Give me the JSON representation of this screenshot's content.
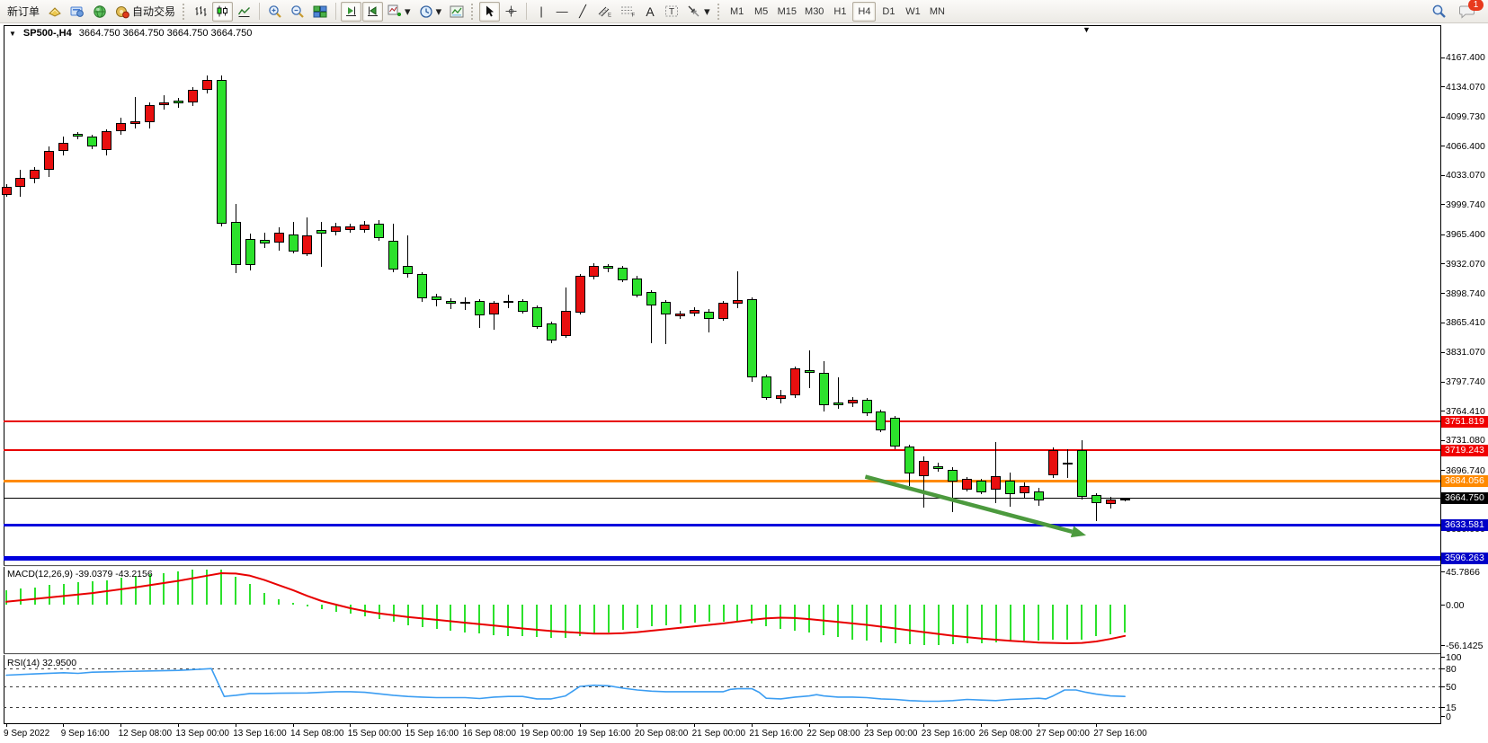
{
  "toolbar": {
    "new_order": "新订单",
    "auto_trading": "自动交易",
    "timeframes": [
      "M1",
      "M5",
      "M15",
      "M30",
      "H1",
      "H4",
      "D1",
      "W1",
      "MN"
    ],
    "active_timeframe": "H4",
    "notification_count": "1",
    "icons": [
      "new-order",
      "metaeditor",
      "marketwatch-globe",
      "auto-trading",
      "bar-chart",
      "candlestick-chart",
      "line-chart",
      "zoom-in",
      "zoom-out",
      "tile-windows",
      "auto-scroll",
      "chart-shift",
      "add-indicator",
      "periods-clock",
      "templates",
      "cursor",
      "crosshair",
      "vertical-line",
      "horizontal-line",
      "trendline",
      "equidistant-channel",
      "fibonacci",
      "text",
      "text-label",
      "shapes",
      "search",
      "notifications"
    ]
  },
  "chart_header": {
    "symbol_period": "SP500-,H4",
    "ohlc": "3664.750 3664.750 3664.750 3664.750"
  },
  "price_axis": {
    "ticks": [
      "4167.400",
      "4134.070",
      "4099.730",
      "4066.400",
      "4033.070",
      "3999.740",
      "3965.400",
      "3932.070",
      "3898.740",
      "3865.410",
      "3831.070",
      "3797.740",
      "3764.410",
      "3731.080",
      "3696.740",
      "3630.000"
    ]
  },
  "time_axis": {
    "labels": [
      "9 Sep 2022",
      "9 Sep 16:00",
      "12 Sep 08:00",
      "13 Sep 00:00",
      "13 Sep 16:00",
      "14 Sep 08:00",
      "15 Sep 00:00",
      "15 Sep 16:00",
      "16 Sep 08:00",
      "19 Sep 00:00",
      "19 Sep 16:00",
      "20 Sep 08:00",
      "21 Sep 00:00",
      "21 Sep 16:00",
      "22 Sep 08:00",
      "23 Sep 00:00",
      "23 Sep 16:00",
      "26 Sep 08:00",
      "27 Sep 00:00",
      "27 Sep 16:00"
    ],
    "bars_per_label": 4
  },
  "chart_data": {
    "type": "candlestick",
    "symbol": "SP500-",
    "timeframe": "H4",
    "colors": {
      "up": "#e80f0f",
      "down": "#2ce12c",
      "wick": "#000000",
      "background": "#ffffff"
    },
    "candles": [
      [
        4023,
        4020,
        4010,
        4008,
        "r"
      ],
      [
        4039,
        4030,
        4020,
        4008,
        "r"
      ],
      [
        4042,
        4039,
        4029,
        4024,
        "r"
      ],
      [
        4066,
        4061,
        4039,
        4031,
        "r"
      ],
      [
        4077,
        4070,
        4061,
        4056,
        "r"
      ],
      [
        4082,
        4080,
        4077,
        4074,
        "g"
      ],
      [
        4079,
        4077,
        4066,
        4063,
        "g"
      ],
      [
        4085,
        4083,
        4062,
        4056,
        "r"
      ],
      [
        4099,
        4093,
        4083,
        4079,
        "r"
      ],
      [
        4122,
        4095,
        4092,
        4086,
        "r"
      ],
      [
        4116,
        4113,
        4094,
        4086,
        "r"
      ],
      [
        4124,
        4116,
        4113,
        4108,
        "r"
      ],
      [
        4121,
        4118,
        4115,
        4110,
        "g"
      ],
      [
        4134,
        4130,
        4116,
        4112,
        "r"
      ],
      [
        4147,
        4142,
        4130,
        4126,
        "r"
      ],
      [
        4147,
        4142,
        3978,
        3975,
        "g"
      ],
      [
        4000,
        3980,
        3931,
        3921,
        "g"
      ],
      [
        3966,
        3960,
        3931,
        3924,
        "g"
      ],
      [
        3967,
        3959,
        3955,
        3950,
        "g"
      ],
      [
        3974,
        3967,
        3956,
        3947,
        "r"
      ],
      [
        3980,
        3965,
        3946,
        3944,
        "g"
      ],
      [
        3985,
        3964,
        3943,
        3941,
        "r"
      ],
      [
        3980,
        3971,
        3966,
        3928,
        "g"
      ],
      [
        3979,
        3975,
        3968,
        3964,
        "r"
      ],
      [
        3978,
        3975,
        3970,
        3967,
        "r"
      ],
      [
        3981,
        3977,
        3970,
        3967,
        "r"
      ],
      [
        3982,
        3978,
        3961,
        3958,
        "g"
      ],
      [
        3978,
        3958,
        3925,
        3922,
        "g"
      ],
      [
        3964,
        3929,
        3920,
        3916,
        "g"
      ],
      [
        3922,
        3920,
        3893,
        3888,
        "g"
      ],
      [
        3898,
        3895,
        3891,
        3883,
        "g"
      ],
      [
        3893,
        3890,
        3886,
        3880,
        "g"
      ],
      [
        3894,
        3888,
        3886,
        3879,
        "g"
      ],
      [
        3892,
        3889,
        3873,
        3859,
        "g"
      ],
      [
        3889,
        3887,
        3874,
        3857,
        "r"
      ],
      [
        3897,
        3889,
        3887,
        3881,
        "r"
      ],
      [
        3892,
        3890,
        3877,
        3875,
        "g"
      ],
      [
        3884,
        3882,
        3860,
        3858,
        "g"
      ],
      [
        3866,
        3864,
        3844,
        3841,
        "g"
      ],
      [
        3905,
        3878,
        3850,
        3847,
        "r"
      ],
      [
        3920,
        3918,
        3876,
        3874,
        "r"
      ],
      [
        3933,
        3930,
        3917,
        3914,
        "r"
      ],
      [
        3932,
        3930,
        3926,
        3922,
        "g"
      ],
      [
        3929,
        3927,
        3913,
        3911,
        "g"
      ],
      [
        3918,
        3915,
        3896,
        3894,
        "g"
      ],
      [
        3902,
        3900,
        3884,
        3841,
        "g"
      ],
      [
        3891,
        3888,
        3874,
        3840,
        "g"
      ],
      [
        3878,
        3875,
        3872,
        3869,
        "r"
      ],
      [
        3882,
        3879,
        3875,
        3872,
        "r"
      ],
      [
        3880,
        3877,
        3869,
        3854,
        "g"
      ],
      [
        3889,
        3887,
        3869,
        3867,
        "r"
      ],
      [
        3923,
        3891,
        3886,
        3881,
        "r"
      ],
      [
        3894,
        3892,
        3802,
        3797,
        "g"
      ],
      [
        3805,
        3803,
        3779,
        3777,
        "g"
      ],
      [
        3788,
        3782,
        3778,
        3773,
        "r"
      ],
      [
        3815,
        3813,
        3782,
        3779,
        "r"
      ],
      [
        3833,
        3811,
        3807,
        3790,
        "g"
      ],
      [
        3821,
        3807,
        3771,
        3763,
        "g"
      ],
      [
        3802,
        3774,
        3771,
        3766,
        "g"
      ],
      [
        3780,
        3777,
        3773,
        3769,
        "r"
      ],
      [
        3779,
        3777,
        3761,
        3758,
        "g"
      ],
      [
        3765,
        3763,
        3742,
        3740,
        "g"
      ],
      [
        3758,
        3756,
        3723,
        3720,
        "g"
      ],
      [
        3725,
        3723,
        3693,
        3678,
        "g"
      ],
      [
        3712,
        3707,
        3690,
        3654,
        "r"
      ],
      [
        3705,
        3701,
        3698,
        3695,
        "g"
      ],
      [
        3700,
        3697,
        3683,
        3649,
        "g"
      ],
      [
        3689,
        3687,
        3674,
        3672,
        "r"
      ],
      [
        3687,
        3684,
        3671,
        3669,
        "g"
      ],
      [
        3729,
        3690,
        3674,
        3659,
        "r"
      ],
      [
        3694,
        3684,
        3669,
        3655,
        "g"
      ],
      [
        3682,
        3678,
        3670,
        3664,
        "r"
      ],
      [
        3676,
        3672,
        3662,
        3656,
        "g"
      ],
      [
        3722,
        3719,
        3691,
        3688,
        "r"
      ],
      [
        3720,
        3705,
        3703,
        3688,
        "g"
      ],
      [
        3731,
        3719,
        3666,
        3663,
        "g"
      ],
      [
        3670,
        3668,
        3659,
        3638,
        "g"
      ],
      [
        3666,
        3663,
        3658,
        3653,
        "r"
      ],
      [
        3665,
        3664,
        3662,
        3661,
        "g"
      ]
    ],
    "levels": [
      {
        "price": 3751.819,
        "label": "3751.819",
        "color": "#e80000",
        "badge": "#f00000",
        "width": 2
      },
      {
        "price": 3719.243,
        "label": "3719.243",
        "color": "#e80000",
        "badge": "#f00000",
        "width": 2
      },
      {
        "price": 3684.056,
        "label": "3684.056",
        "color": "#ff8a00",
        "badge": "#ff8a00",
        "width": 3
      },
      {
        "price": 3664.75,
        "label": "3664.750",
        "color": "#000000",
        "badge": "#000000",
        "width": 1
      },
      {
        "price": 3633.581,
        "label": "3633.581",
        "color": "#0000dd",
        "badge": "#0000c8",
        "width": 3
      },
      {
        "price": 3596.263,
        "label": "3596.263",
        "color": "#0000dd",
        "badge": "#0000c8",
        "width": 5
      }
    ],
    "trend_arrow": {
      "from": {
        "bar": 59.9,
        "price": 3689
      },
      "to": {
        "bar": 75.3,
        "price": 3622
      },
      "color": "#4c9a3e"
    },
    "macd": {
      "label": "MACD(12,26,9) -39.0379 -43.2156",
      "axis": [
        "45.7866",
        "0.00",
        "-56.1425"
      ],
      "colors": {
        "histogram": "#2ce12c",
        "signal": "#e80000"
      },
      "histogram": [
        20,
        22,
        24,
        27,
        29,
        31,
        32,
        34,
        37,
        40,
        42,
        44,
        46,
        48,
        49,
        49,
        38,
        28,
        16,
        8,
        3,
        -2,
        -6,
        -10,
        -13,
        -16,
        -20,
        -24,
        -28,
        -31,
        -34,
        -36,
        -38,
        -40,
        -42,
        -43,
        -44,
        -45,
        -46,
        -46,
        -44,
        -41,
        -38,
        -35,
        -32,
        -30,
        -28,
        -26,
        -25,
        -24,
        -23,
        -23,
        -26,
        -30,
        -33,
        -36,
        -39,
        -42,
        -45,
        -48,
        -50,
        -52,
        -54,
        -55,
        -56,
        -56,
        -55,
        -54,
        -53,
        -52,
        -51,
        -50,
        -50,
        -49,
        -48,
        -48,
        -44,
        -41,
        -39
      ],
      "signal": [
        [
          0,
          4
        ],
        [
          3,
          10
        ],
        [
          6,
          16
        ],
        [
          9,
          24
        ],
        [
          12,
          33
        ],
        [
          14,
          40
        ],
        [
          15,
          43.5
        ],
        [
          16,
          43
        ],
        [
          17,
          40
        ],
        [
          18,
          34
        ],
        [
          19,
          27
        ],
        [
          20,
          20
        ],
        [
          21,
          12
        ],
        [
          22,
          5
        ],
        [
          23,
          0
        ],
        [
          24,
          -5
        ],
        [
          25,
          -9
        ],
        [
          26,
          -12
        ],
        [
          28,
          -17
        ],
        [
          30,
          -21
        ],
        [
          32,
          -25
        ],
        [
          34,
          -29
        ],
        [
          36,
          -33
        ],
        [
          38,
          -36.5
        ],
        [
          40,
          -39
        ],
        [
          41,
          -40
        ],
        [
          42,
          -40
        ],
        [
          43,
          -39.5
        ],
        [
          44,
          -38
        ],
        [
          46,
          -34
        ],
        [
          48,
          -30
        ],
        [
          50,
          -26
        ],
        [
          52,
          -21
        ],
        [
          53,
          -19
        ],
        [
          54,
          -18
        ],
        [
          55,
          -18.5
        ],
        [
          56,
          -20
        ],
        [
          58,
          -24
        ],
        [
          60,
          -28
        ],
        [
          62,
          -33
        ],
        [
          64,
          -38
        ],
        [
          66,
          -43
        ],
        [
          68,
          -47
        ],
        [
          70,
          -50
        ],
        [
          72,
          -52.5
        ],
        [
          74,
          -53.5
        ],
        [
          75,
          -53
        ],
        [
          76,
          -51
        ],
        [
          77,
          -47.5
        ],
        [
          78,
          -43.2
        ]
      ]
    },
    "rsi": {
      "label": "RSI(14) 32.9500",
      "axis": [
        "100",
        "80",
        "50",
        "15",
        "0"
      ],
      "levels": [
        80,
        50,
        15
      ],
      "color": "#3b9df2",
      "points": [
        [
          0,
          69
        ],
        [
          2,
          71
        ],
        [
          4,
          73
        ],
        [
          5,
          72
        ],
        [
          6,
          74
        ],
        [
          8,
          75
        ],
        [
          10,
          76
        ],
        [
          12,
          77
        ],
        [
          13.5,
          79
        ],
        [
          14.3,
          80
        ],
        [
          15.2,
          33
        ],
        [
          16,
          35
        ],
        [
          17,
          38
        ],
        [
          18,
          38
        ],
        [
          19,
          38.5
        ],
        [
          21,
          39
        ],
        [
          22,
          40
        ],
        [
          23,
          41
        ],
        [
          24,
          41
        ],
        [
          25,
          40
        ],
        [
          27,
          35
        ],
        [
          28,
          33
        ],
        [
          29,
          32
        ],
        [
          30,
          31
        ],
        [
          32,
          31
        ],
        [
          33,
          29.5
        ],
        [
          34,
          32
        ],
        [
          35,
          33
        ],
        [
          36,
          33
        ],
        [
          37,
          29
        ],
        [
          38,
          29
        ],
        [
          39,
          34
        ],
        [
          40,
          50
        ],
        [
          41,
          52
        ],
        [
          42,
          51
        ],
        [
          43,
          47
        ],
        [
          44,
          44
        ],
        [
          45,
          42
        ],
        [
          46,
          41
        ],
        [
          48,
          41
        ],
        [
          50,
          41
        ],
        [
          50.5,
          45
        ],
        [
          51,
          46
        ],
        [
          52,
          46
        ],
        [
          52.5,
          40
        ],
        [
          53,
          30
        ],
        [
          54,
          29
        ],
        [
          55,
          32
        ],
        [
          56,
          34
        ],
        [
          56.5,
          36
        ],
        [
          57,
          34
        ],
        [
          58,
          32
        ],
        [
          59,
          32
        ],
        [
          60,
          31
        ],
        [
          61,
          29
        ],
        [
          62,
          28
        ],
        [
          63,
          26
        ],
        [
          64,
          25
        ],
        [
          65,
          25
        ],
        [
          66,
          26
        ],
        [
          67,
          28
        ],
        [
          68,
          27
        ],
        [
          69,
          26
        ],
        [
          70,
          28
        ],
        [
          71,
          29
        ],
        [
          72,
          30
        ],
        [
          72.5,
          29
        ],
        [
          73,
          34
        ],
        [
          73.8,
          44
        ],
        [
          74.6,
          44
        ],
        [
          75.3,
          40
        ],
        [
          76,
          37
        ],
        [
          77,
          34
        ],
        [
          78,
          33
        ]
      ]
    }
  }
}
